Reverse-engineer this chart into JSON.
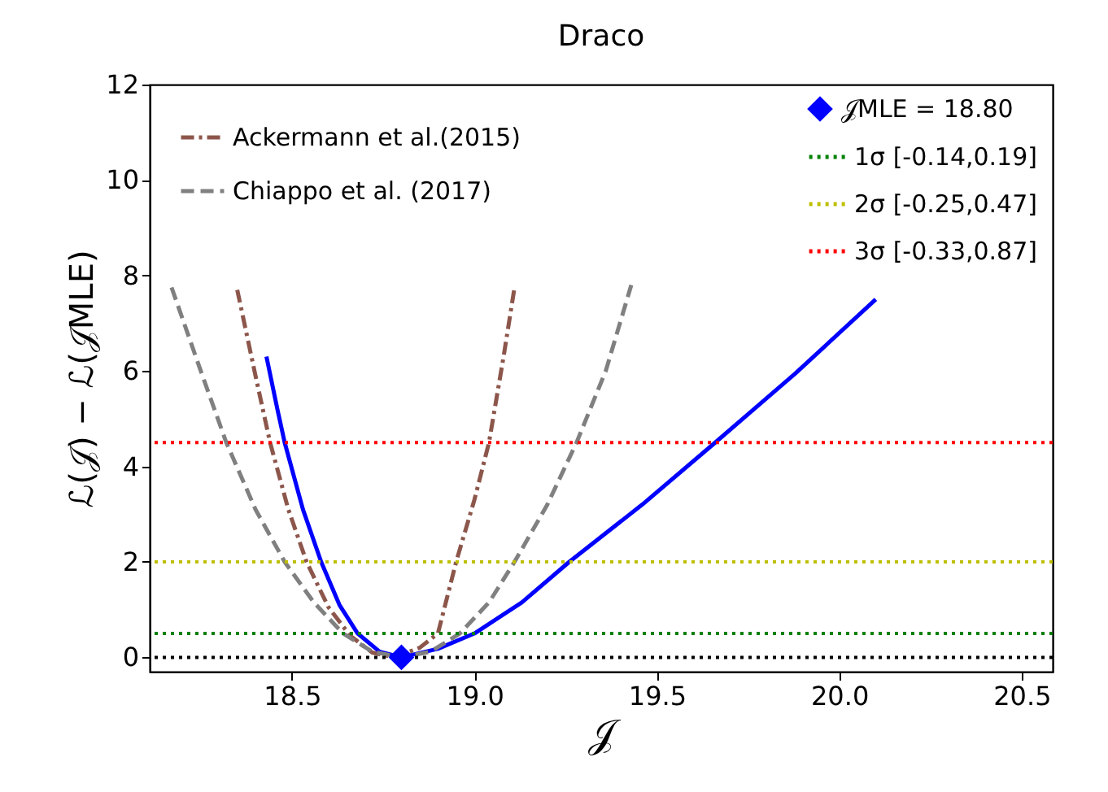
{
  "chart_data": {
    "type": "line",
    "title": "Draco",
    "xlabel": "𝒥",
    "ylabel": "ℒ(𝒥) − ℒ(𝒥MLE)",
    "xlim": [
      18.11,
      20.585
    ],
    "ylim": [
      -0.3,
      12
    ],
    "xticks": [
      {
        "value": 18.5,
        "label": "18.5"
      },
      {
        "value": 19,
        "label": "19.0"
      },
      {
        "value": 19.5,
        "label": "19.5"
      },
      {
        "value": 20,
        "label": "20.0"
      },
      {
        "value": 20.5,
        "label": "20.5"
      }
    ],
    "yticks": [
      0,
      2,
      4,
      6,
      8,
      10,
      12
    ],
    "grid": false,
    "legend": "top",
    "marker": "none",
    "series": [
      {
        "color": "#0000ff",
        "line_style": "solid",
        "x": [
          18.43,
          18.46,
          18.48,
          18.53,
          18.58,
          18.63,
          18.68,
          18.74,
          18.8,
          18.9,
          19.0,
          19.13,
          19.26,
          19.46,
          19.66,
          19.88,
          20.1
        ],
        "values": [
          6.3,
          5.2,
          4.5,
          3.1,
          2.0,
          1.1,
          0.5,
          0.12,
          0.0,
          0.18,
          0.5,
          1.15,
          2.0,
          3.2,
          4.5,
          5.95,
          7.5
        ]
      },
      {
        "name": "Ackermann et al.(2015)",
        "color": "#8c564b",
        "line_style": "dashdot",
        "x": [
          18.35,
          18.4,
          18.44,
          18.49,
          18.54,
          18.6,
          18.66,
          18.72,
          18.78,
          18.85,
          18.9,
          18.95,
          19.0,
          19.04,
          19.08,
          19.11
        ],
        "values": [
          7.7,
          5.9,
          4.5,
          3.1,
          2.0,
          1.05,
          0.45,
          0.1,
          0.0,
          0.2,
          0.5,
          2.0,
          3.3,
          4.5,
          6.3,
          7.75
        ]
      },
      {
        "name": "Chiappo et al. (2017)",
        "color": "#808080",
        "line_style": "dashed",
        "x": [
          18.17,
          18.25,
          18.32,
          18.4,
          18.48,
          18.56,
          18.64,
          18.72,
          18.8,
          18.88,
          18.96,
          19.04,
          19.11,
          19.2,
          19.28,
          19.36,
          19.43
        ],
        "values": [
          7.75,
          6.0,
          4.5,
          3.1,
          2.0,
          1.15,
          0.5,
          0.12,
          0.0,
          0.12,
          0.5,
          1.15,
          2.0,
          3.2,
          4.5,
          6.0,
          7.8
        ]
      },
      {
        "type": "scatter",
        "name": "𝒥MLE = 18.80",
        "color": "#0000ff",
        "marker": "diamond",
        "x": [
          18.8
        ],
        "values": [
          0
        ]
      }
    ],
    "ref_lines": [
      {
        "axis": "y",
        "value": 0,
        "color": "#000000",
        "line_style": "dotted"
      },
      {
        "axis": "y",
        "value": 0.5,
        "label": "1σ  [-0.14,0.19]",
        "color": "#008000",
        "line_style": "dotted"
      },
      {
        "axis": "y",
        "value": 2,
        "label": "2σ  [-0.25,0.47]",
        "color": "#bfbf00",
        "line_style": "dotted"
      },
      {
        "axis": "y",
        "value": 4.5,
        "label": "3σ  [-0.33,0.87]",
        "color": "#ff0000",
        "line_style": "dotted"
      }
    ]
  }
}
